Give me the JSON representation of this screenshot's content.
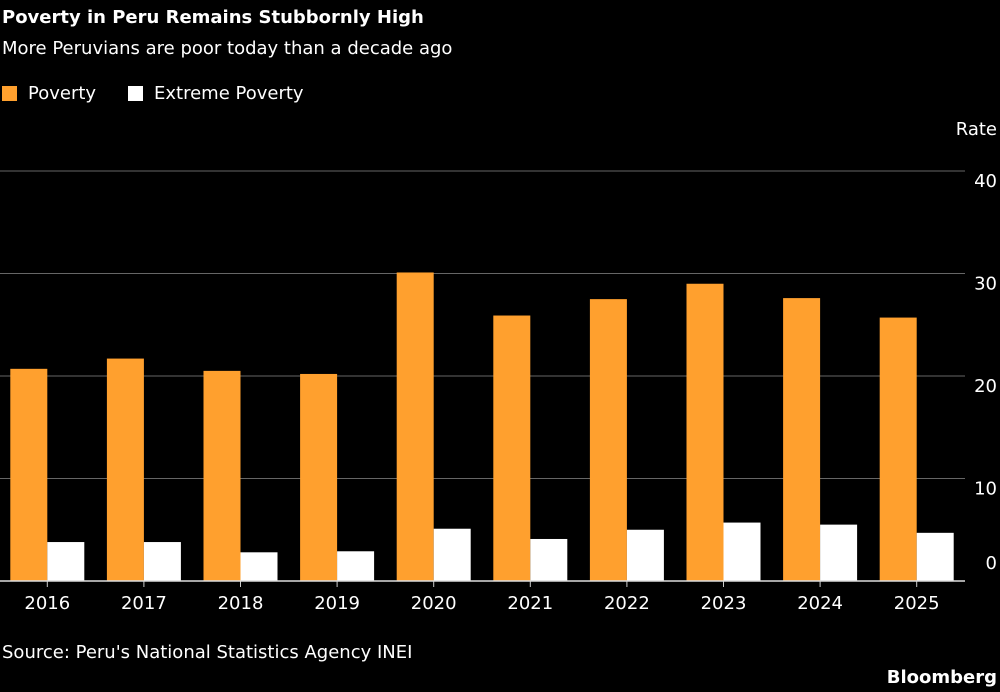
{
  "chart_data": {
    "type": "bar",
    "title": "Poverty in Peru Remains Stubbornly High",
    "subtitle": "More Peruvians are poor today than a decade ago",
    "y_label": "Rate",
    "categories": [
      "2016",
      "2017",
      "2018",
      "2019",
      "2020",
      "2021",
      "2022",
      "2023",
      "2024",
      "2025"
    ],
    "series": [
      {
        "name": "Poverty",
        "color": "#ffa02e",
        "values": [
          20.7,
          21.7,
          20.5,
          20.2,
          30.1,
          25.9,
          27.5,
          29.0,
          27.6,
          25.7
        ]
      },
      {
        "name": "Extreme Poverty",
        "color": "#ffffff",
        "values": [
          3.8,
          3.8,
          2.8,
          2.9,
          5.1,
          4.1,
          5.0,
          5.7,
          5.5,
          4.7
        ]
      }
    ],
    "ylim": [
      0,
      40
    ],
    "yticks": [
      0,
      10,
      20,
      30,
      40
    ],
    "grid": true,
    "source": "Source: Peru's National Statistics Agency INEI",
    "credit": "Bloomberg"
  }
}
